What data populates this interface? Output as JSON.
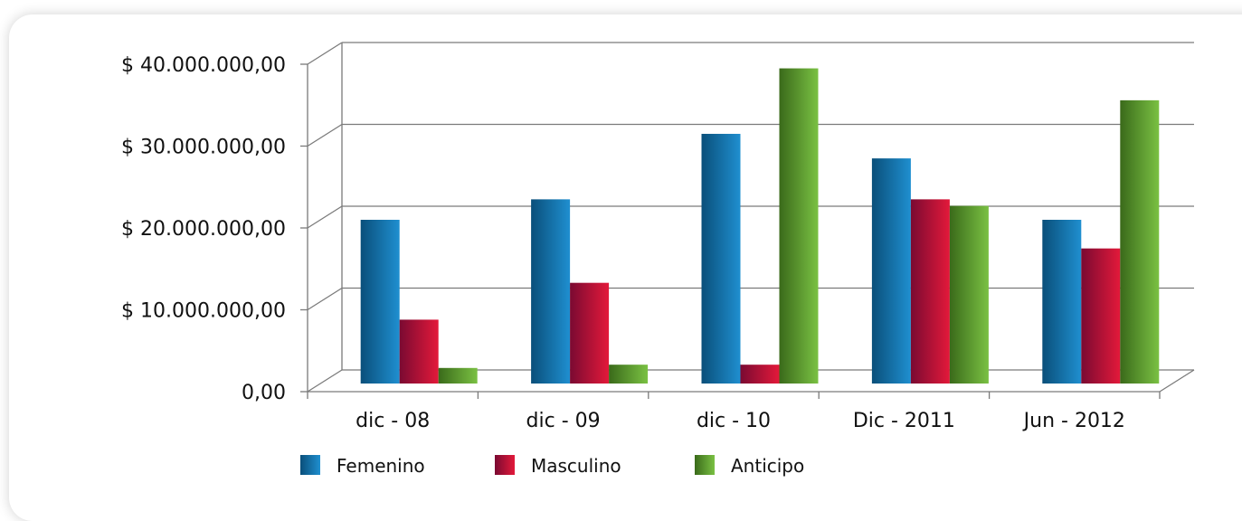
{
  "chart_data": {
    "type": "bar",
    "title": "",
    "xlabel": "",
    "ylabel": "",
    "categories": [
      "dic - 08",
      "dic - 09",
      "dic - 10",
      "Dic - 2011",
      "Jun - 2012"
    ],
    "series": [
      {
        "name": "Femenino",
        "values": [
          20000000,
          22500000,
          30500000,
          27500000,
          20000000
        ],
        "color": "#1f8fd0",
        "dark": "#0a4f7a"
      },
      {
        "name": "Masculino",
        "values": [
          7800000,
          12300000,
          2300000,
          22500000,
          16500000
        ],
        "color": "#e3193a",
        "dark": "#7a0a32"
      },
      {
        "name": "Anticipo",
        "values": [
          1900000,
          2300000,
          38500000,
          21700000,
          34600000
        ],
        "color": "#7ac143",
        "dark": "#3a6a1a"
      }
    ],
    "ylim": [
      0,
      40000000
    ],
    "yticks": [
      0,
      10000000,
      20000000,
      30000000,
      40000000
    ],
    "ytick_labels": [
      "0,00",
      "$ 10.000.000,00",
      "$ 20.000.000,00",
      "$ 30.000.000,00",
      "$ 40.000.000,00"
    ],
    "grid": true,
    "legend_position": "bottom-left",
    "style": "3d-bar"
  }
}
